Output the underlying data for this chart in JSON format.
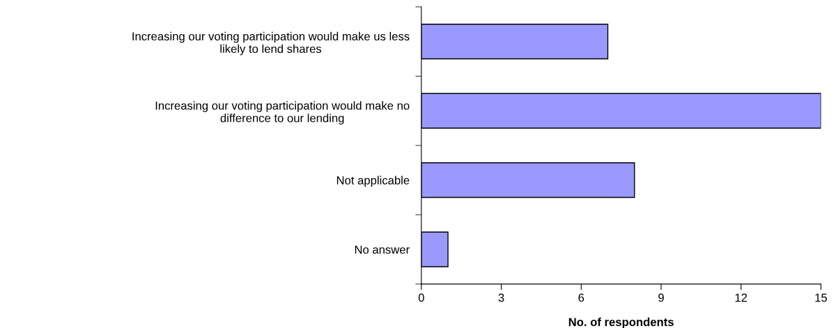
{
  "chart_data": {
    "type": "bar",
    "orientation": "horizontal",
    "categories": [
      "Increasing our voting participation would make us less\nlikely to lend shares",
      "Increasing our voting participation would make no\ndifference to our lending",
      "Not applicable",
      "No answer"
    ],
    "values": [
      7,
      15,
      8,
      1
    ],
    "color": "#9999ff",
    "xlabel": "No. of respondents",
    "xlim": [
      0,
      15
    ],
    "xticks": [
      0,
      3,
      6,
      9,
      12,
      15
    ],
    "grid": false,
    "legend": false
  }
}
